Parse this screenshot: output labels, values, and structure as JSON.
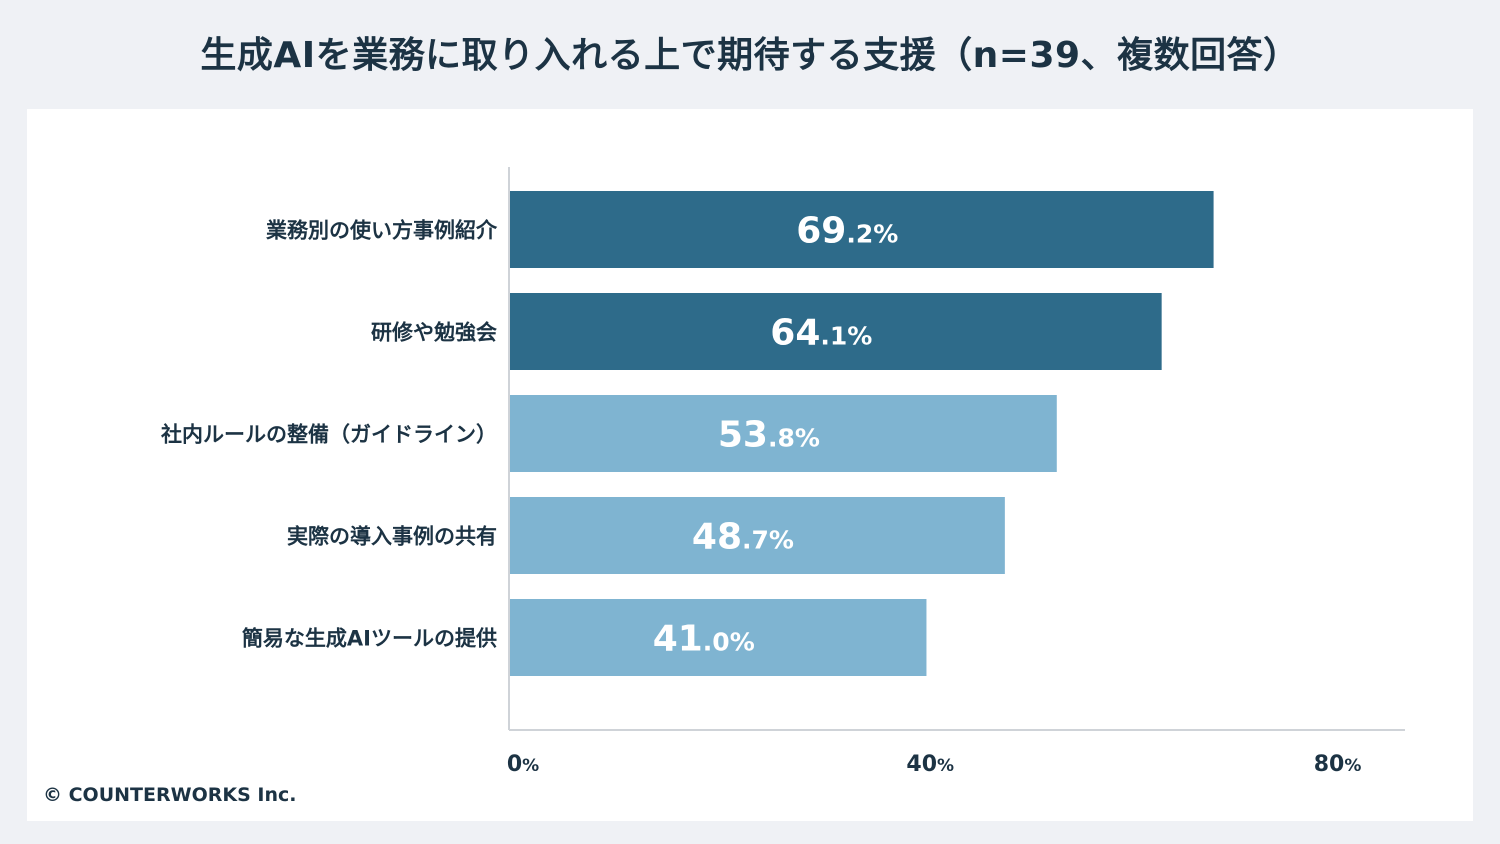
{
  "title": "生成AIを業務に取り入れる上で期待する支援（n=39、複数回答）",
  "copyright": "© COUNTERWORKS Inc.",
  "chart_data": {
    "type": "bar",
    "orientation": "horizontal",
    "title": "生成AIを業務に取り入れる上で期待する支援（n=39、複数回答）",
    "categories": [
      "業務別の使い方事例紹介",
      "研修や勉強会",
      "社内ルールの整備（ガイドライン）",
      "実際の導入事例の共有",
      "簡易な生成AIツールの提供"
    ],
    "values": [
      69.2,
      64.1,
      53.8,
      48.7,
      41.0
    ],
    "value_labels": [
      "69.2%",
      "64.1%",
      "53.8%",
      "48.7%",
      "41.0%"
    ],
    "bar_colors": [
      "#2e6b8a",
      "#2e6b8a",
      "#7fb4d1",
      "#7fb4d1",
      "#7fb4d1"
    ],
    "xlim": [
      0,
      88
    ],
    "xticks": [
      0,
      40,
      80
    ],
    "xtick_labels": [
      "0%",
      "40%",
      "80%"
    ],
    "unit": "%",
    "grid": false,
    "legend": "none"
  }
}
